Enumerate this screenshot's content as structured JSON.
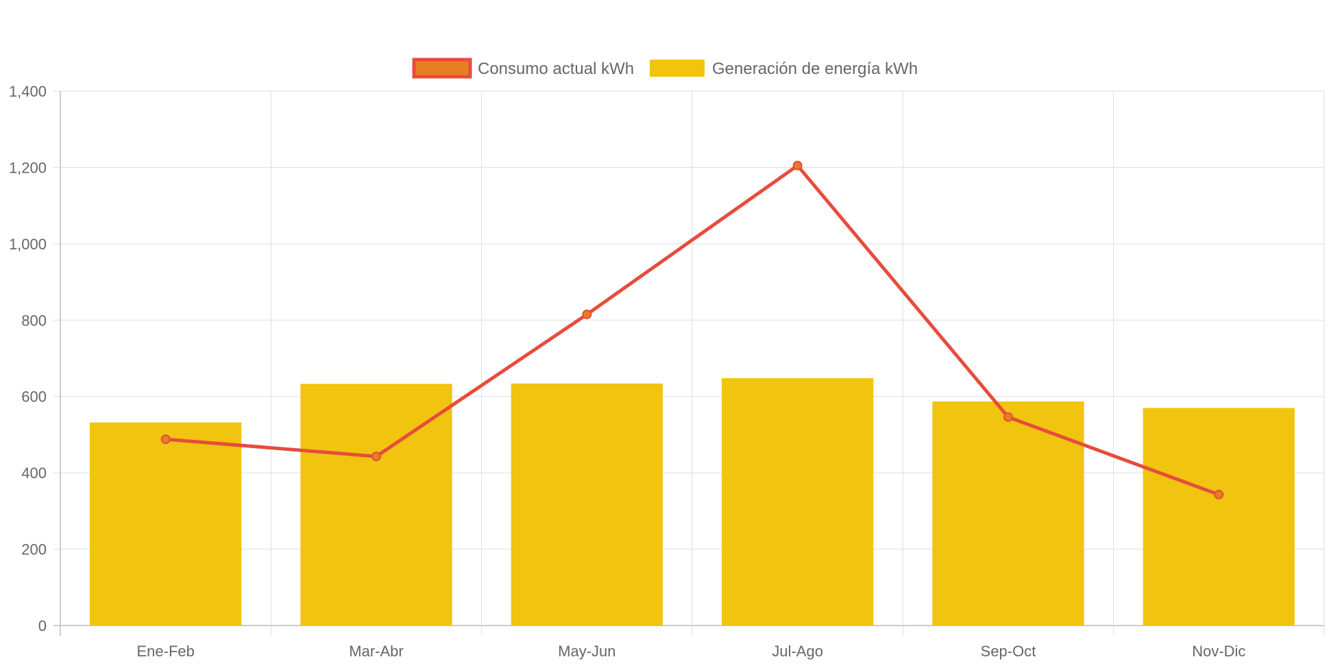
{
  "chart_data": {
    "type": "bar",
    "categories": [
      "Ene-Feb",
      "Mar-Abr",
      "May-Jun",
      "Jul-Ago",
      "Sep-Oct",
      "Nov-Dic"
    ],
    "series": [
      {
        "name": "Consumo actual kWh",
        "type": "line",
        "values": [
          488,
          443,
          815,
          1205,
          546,
          343
        ],
        "color": "#e74c3c",
        "point_color": "#e67e22"
      },
      {
        "name": "Generación de energía kWh",
        "type": "bar",
        "values": [
          532,
          633,
          634,
          648,
          587,
          570
        ],
        "color": "#f1c40f"
      }
    ],
    "y_ticks": [
      "0",
      "200",
      "400",
      "600",
      "800",
      "1,000",
      "1,200",
      "1,400"
    ],
    "ylim": [
      0,
      1400
    ],
    "title": "",
    "xlabel": "",
    "ylabel": "",
    "grid": true,
    "legend_position": "top-center"
  },
  "colors": {
    "grid": "#dddddd",
    "axis": "#cccccc",
    "text": "#666666"
  }
}
